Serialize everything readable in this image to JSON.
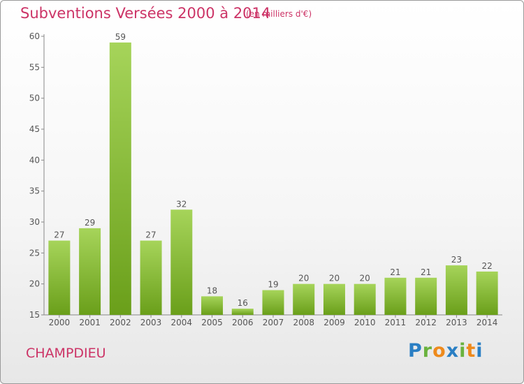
{
  "header": {
    "title": "Subventions Versées 2000 à 2014",
    "unit": "(en milliers d'€)"
  },
  "footer": {
    "commune": "CHAMPDIEU",
    "logo_letters": [
      "P",
      "r",
      "o",
      "x",
      "i",
      "t",
      "i"
    ],
    "logo_colors": [
      "#2a7fc4",
      "#6ab23e",
      "#ee8a1c",
      "#2a7fc4",
      "#6ab23e",
      "#ee8a1c",
      "#2a7fc4"
    ]
  },
  "colors": {
    "bar_top": "#a6d45a",
    "bar_bottom": "#6a9f1a",
    "accent": "#cc3366"
  },
  "chart_data": {
    "type": "bar",
    "categories": [
      "2000",
      "2001",
      "2002",
      "2003",
      "2004",
      "2005",
      "2006",
      "2007",
      "2008",
      "2009",
      "2010",
      "2011",
      "2012",
      "2013",
      "2014"
    ],
    "values": [
      27,
      29,
      59,
      27,
      32,
      18,
      16,
      19,
      20,
      20,
      20,
      21,
      21,
      23,
      22
    ],
    "ylim": [
      15,
      60
    ],
    "yticks": [
      15,
      20,
      25,
      30,
      35,
      40,
      45,
      50,
      55,
      60
    ],
    "grid": false
  }
}
